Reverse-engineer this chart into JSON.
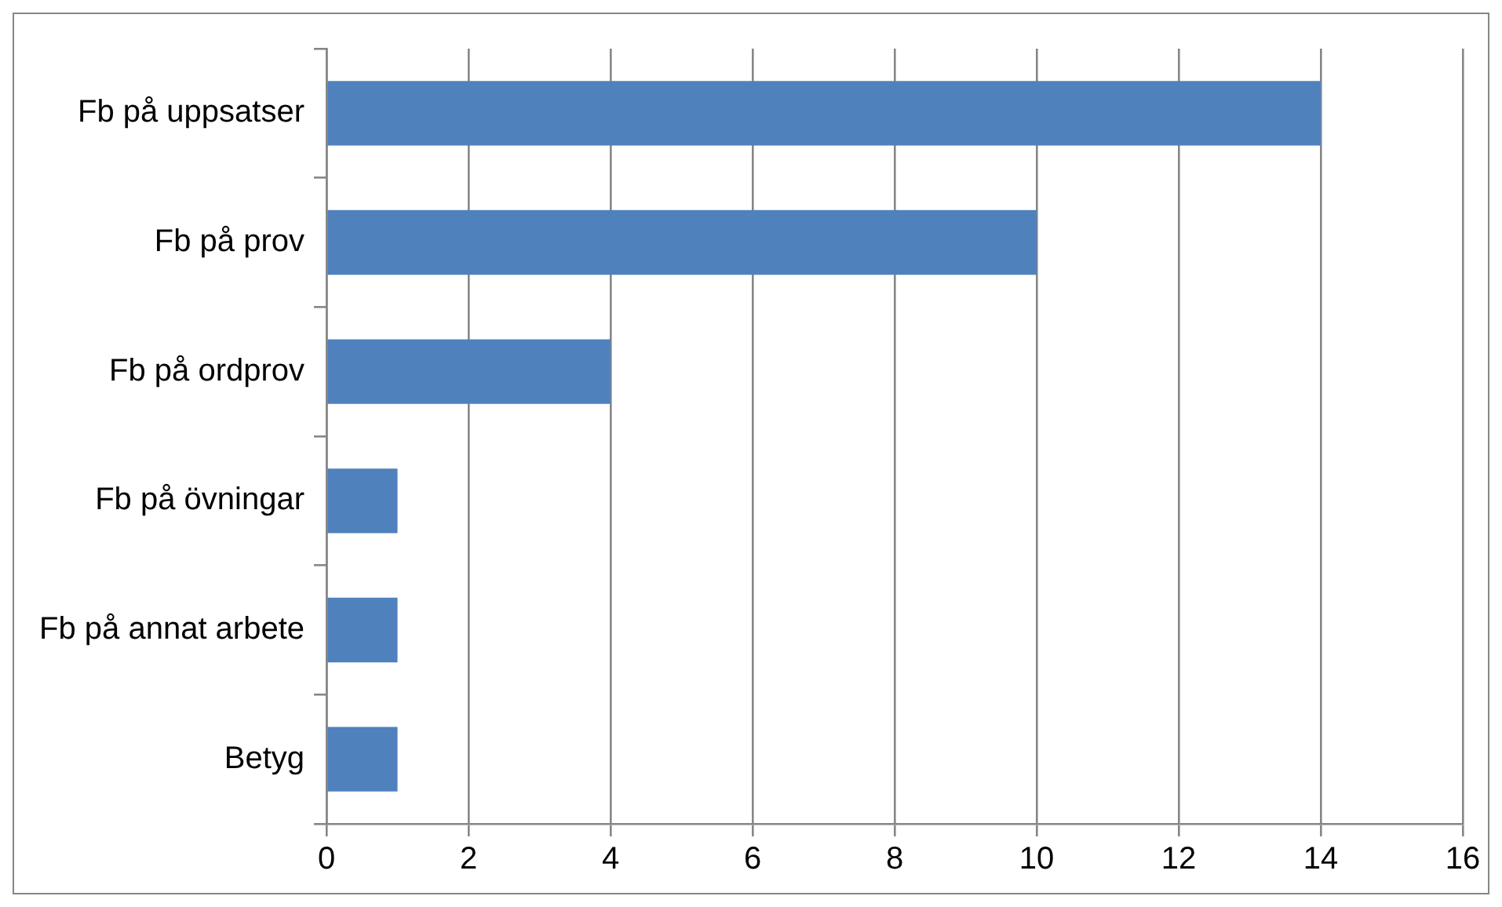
{
  "chart_data": {
    "type": "bar",
    "orientation": "horizontal",
    "categories": [
      "Fb på uppsatser",
      "Fb på prov",
      "Fb på ordprov",
      "Fb på övningar",
      "Fb på annat arbete",
      "Betyg"
    ],
    "values": [
      14,
      10,
      4,
      1,
      1,
      1
    ],
    "color": "#4f81bd",
    "xlim": [
      0,
      16
    ],
    "xticks": [
      0,
      2,
      4,
      6,
      8,
      10,
      12,
      14,
      16
    ],
    "grid": "x",
    "legend": false
  }
}
